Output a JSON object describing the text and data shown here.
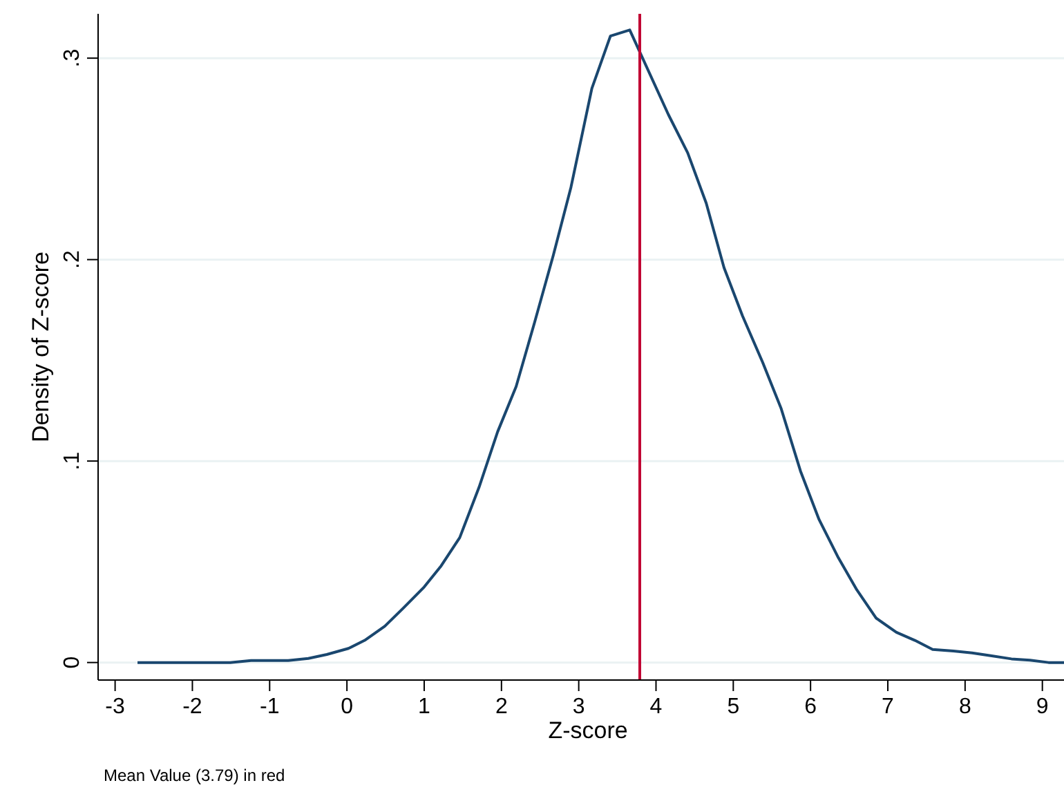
{
  "chart_data": {
    "type": "line",
    "xlabel": "Z-score",
    "ylabel": "Density of Z-score",
    "x": [
      -2.71,
      -2.25,
      -1.99,
      -1.51,
      -1.24,
      -0.76,
      -0.5,
      -0.26,
      0.02,
      0.23,
      0.49,
      0.73,
      1.0,
      1.22,
      1.46,
      1.71,
      1.95,
      2.19,
      2.43,
      2.67,
      2.9,
      3.17,
      3.41,
      3.66,
      4.16,
      4.41,
      4.65,
      4.88,
      5.12,
      5.38,
      5.62,
      5.87,
      6.11,
      6.36,
      6.6,
      6.85,
      7.11,
      7.35,
      7.58,
      7.85,
      8.09,
      8.33,
      8.6,
      8.84,
      9.08,
      9.28
    ],
    "series": [
      {
        "color": "#1a476f",
        "values": [
          0,
          0,
          0,
          0,
          0.001,
          0.001,
          0.002,
          0.004,
          0.007,
          0.011,
          0.018,
          0.027,
          0.0375,
          0.048,
          0.062,
          0.087,
          0.1145,
          0.137,
          0.169,
          0.202,
          0.236,
          0.285,
          0.311,
          0.314,
          0.272,
          0.253,
          0.228,
          0.196,
          0.172,
          0.149,
          0.126,
          0.095,
          0.071,
          0.052,
          0.036,
          0.022,
          0.015,
          0.011,
          0.0065,
          0.0057,
          0.0048,
          0.0034,
          0.0018,
          0.0012,
          0,
          0
        ]
      }
    ],
    "xlim": [
      -3.22,
      9.28
    ],
    "xticks": [
      -3,
      -2,
      -1,
      0,
      1,
      2,
      3,
      4,
      5,
      6,
      7,
      8,
      9
    ],
    "ylim": [
      -0.0087,
      0.322
    ],
    "yticks": [
      0,
      {
        "value": 0.1,
        "label": ".1"
      },
      {
        "value": 0.2,
        "label": ".2"
      },
      {
        "value": 0.3,
        "label": ".3"
      }
    ],
    "grid": "y",
    "marker": "none",
    "line_style": "solid",
    "ref_lines": [
      {
        "axis": "x",
        "value": 3.79,
        "color": "#c10534"
      }
    ],
    "annotations": [
      "Mean Value (3.79) in red"
    ]
  }
}
